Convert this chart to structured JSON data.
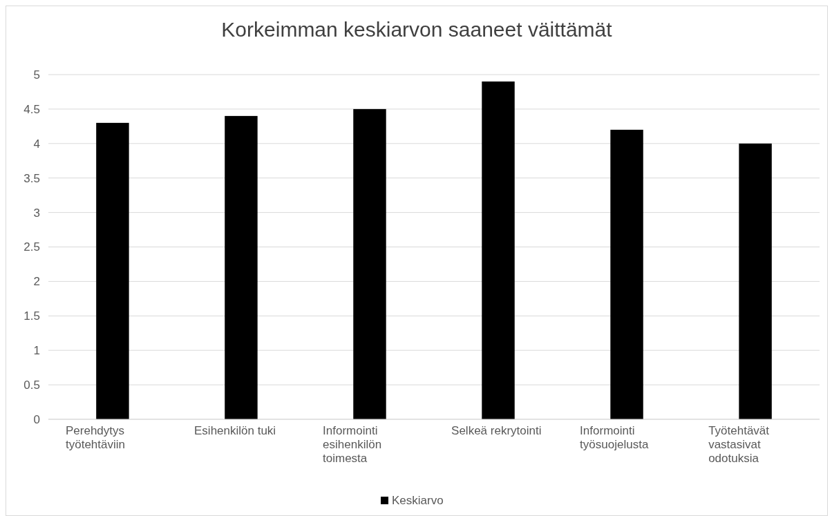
{
  "chart_data": {
    "type": "bar",
    "title": "Korkeimman keskiarvon saaneet väittämät",
    "categories": [
      "Perehdytys työtehtäviin",
      "Esihenkilön tuki",
      "Informointi esihenkilön toimesta",
      "Selkeä rekrytointi",
      "Informointi työsuojelusta",
      "Työtehtävät vastasivat odotuksia"
    ],
    "series": [
      {
        "name": "Keskiarvo",
        "color": "#000000",
        "values": [
          4.3,
          4.4,
          4.5,
          4.9,
          4.2,
          4.0
        ]
      }
    ],
    "ylim": [
      0,
      5
    ],
    "yticks": [
      0,
      0.5,
      1,
      1.5,
      2,
      2.5,
      3,
      3.5,
      4,
      4.5,
      5
    ],
    "grid": "y",
    "legend": "bottom"
  }
}
